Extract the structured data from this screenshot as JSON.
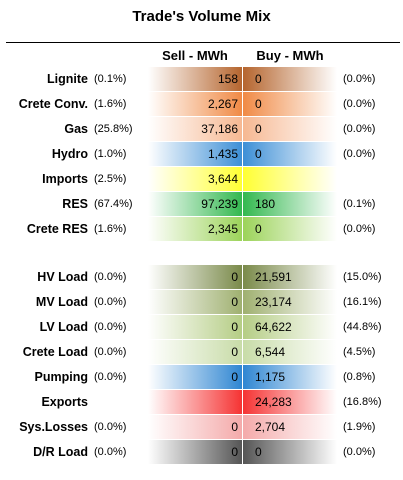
{
  "title": "Trade's Volume Mix",
  "headers": {
    "sell": "Sell - MWh",
    "buy": "Buy - MWh"
  },
  "rows": [
    {
      "label": "Lignite",
      "sell_pct": "(0.1%)",
      "sell": "158",
      "buy": "0",
      "buy_pct": "(0.0%)",
      "sell_color": "#b5652e",
      "buy_color": "#b5652e"
    },
    {
      "label": "Crete Conv.",
      "sell_pct": "(1.6%)",
      "sell": "2,267",
      "buy": "0",
      "buy_pct": "(0.0%)",
      "sell_color": "#f08a45",
      "buy_color": "#f08a45"
    },
    {
      "label": "Gas",
      "sell_pct": "(25.8%)",
      "sell": "37,186",
      "buy": "0",
      "buy_pct": "(0.0%)",
      "sell_color": "#f6b892",
      "buy_color": "#f6b892"
    },
    {
      "label": "Hydro",
      "sell_pct": "(1.0%)",
      "sell": "1,435",
      "buy": "0",
      "buy_pct": "(0.0%)",
      "sell_color": "#3d8fd6",
      "buy_color": "#3d8fd6"
    },
    {
      "label": "Imports",
      "sell_pct": "(2.5%)",
      "sell": "3,644",
      "buy": "",
      "buy_pct": "",
      "sell_color": "#ffff33",
      "buy_color": "#ffff33"
    },
    {
      "label": "RES",
      "sell_pct": "(67.4%)",
      "sell": "97,239",
      "buy": "180",
      "buy_pct": "(0.1%)",
      "sell_color": "#33b84f",
      "buy_color": "#33b84f"
    },
    {
      "label": "Crete RES",
      "sell_pct": "(1.6%)",
      "sell": "2,345",
      "buy": "0",
      "buy_pct": "(0.0%)",
      "sell_color": "#9cd35a",
      "buy_color": "#9cd35a"
    },
    {
      "label": "HV Load",
      "sell_pct": "(0.0%)",
      "sell": "0",
      "buy": "21,591",
      "buy_pct": "(15.0%)",
      "sell_color": "#7a8a4a",
      "buy_color": "#7a8a4a"
    },
    {
      "label": "MV Load",
      "sell_pct": "(0.0%)",
      "sell": "0",
      "buy": "23,174",
      "buy_pct": "(16.1%)",
      "sell_color": "#9fb070",
      "buy_color": "#9fb070"
    },
    {
      "label": "LV Load",
      "sell_pct": "(0.0%)",
      "sell": "0",
      "buy": "64,622",
      "buy_pct": "(44.8%)",
      "sell_color": "#b5cd85",
      "buy_color": "#b5cd85"
    },
    {
      "label": "Crete Load",
      "sell_pct": "(0.0%)",
      "sell": "0",
      "buy": "6,544",
      "buy_pct": "(4.5%)",
      "sell_color": "#c8dca8",
      "buy_color": "#c8dca8"
    },
    {
      "label": "Pumping",
      "sell_pct": "(0.0%)",
      "sell": "0",
      "buy": "1,175",
      "buy_pct": "(0.8%)",
      "sell_color": "#2f86d2",
      "buy_color": "#2f86d2"
    },
    {
      "label": "Exports",
      "sell_pct": "",
      "sell": "",
      "buy": "24,283",
      "buy_pct": "(16.8%)",
      "sell_color": "#f53333",
      "buy_color": "#f53333"
    },
    {
      "label": "Sys.Losses",
      "sell_pct": "(0.0%)",
      "sell": "0",
      "buy": "2,704",
      "buy_pct": "(1.9%)",
      "sell_color": "#f4aaaa",
      "buy_color": "#f4aaaa"
    },
    {
      "label": "D/R Load",
      "sell_pct": "(0.0%)",
      "sell": "0",
      "buy": "0",
      "buy_pct": "(0.0%)",
      "sell_color": "#555555",
      "buy_color": "#555555"
    }
  ]
}
